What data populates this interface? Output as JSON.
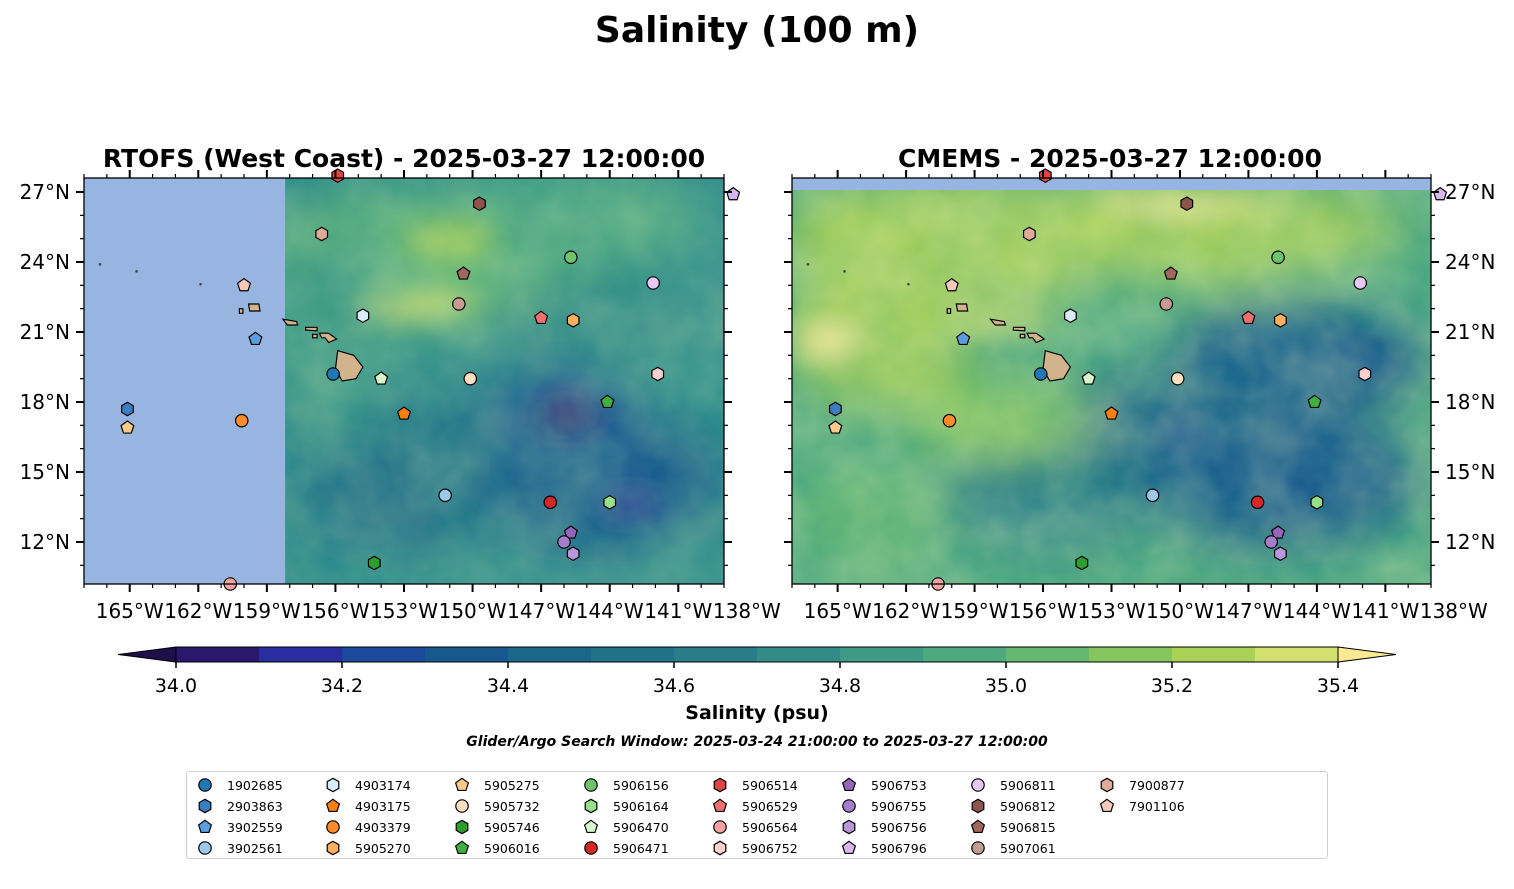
{
  "figure_title": "Salinity (100 m)",
  "search_window": "Glider/Argo Search Window: 2025-03-24 21:00:00 to 2025-03-27 12:00:00",
  "colorbar": {
    "label": "Salinity (psu)",
    "ticks": [
      "34.0",
      "34.2",
      "34.4",
      "34.6",
      "34.8",
      "35.0",
      "35.2",
      "35.4"
    ],
    "vmin": 34.0,
    "vmax": 35.4,
    "step": 0.1,
    "colors": [
      "#2a186c",
      "#2a2d9f",
      "#1b4a9a",
      "#17598f",
      "#1a6789",
      "#1f7287",
      "#287d88",
      "#338b88",
      "#3e9a84",
      "#4ea97f",
      "#65b871",
      "#86c65e",
      "#a9d156",
      "#d3e06f"
    ],
    "under_color": "#1d0f4a",
    "over_color": "#fbea92"
  },
  "panels": [
    {
      "title": "RTOFS (West Coast) - 2025-03-27 12:00:00",
      "lat_ticks": [
        "27°N",
        "24°N",
        "21°N",
        "18°N",
        "15°N",
        "12°N"
      ],
      "lon_ticks": [
        "165°W",
        "162°W",
        "159°W",
        "156°W",
        "153°W",
        "150°W",
        "147°W",
        "144°W",
        "141°W",
        "138°W"
      ]
    },
    {
      "title": "CMEMS - 2025-03-27 12:00:00",
      "lat_ticks": [
        "27°N",
        "24°N",
        "21°N",
        "18°N",
        "15°N",
        "12°N"
      ],
      "lon_ticks": [
        "165°W",
        "162°W",
        "159°W",
        "156°W",
        "153°W",
        "150°W",
        "147°W",
        "144°W",
        "141°W",
        "138°W"
      ]
    }
  ],
  "chart_data": {
    "type": "scatter",
    "map_extent": {
      "lon": [
        -167,
        -139
      ],
      "lat": [
        10.2,
        27.6
      ]
    },
    "rtofs_valid_lon_min": -158.2,
    "cmems_valid_lat_max": 27.1,
    "lat_tick_values": [
      27,
      24,
      21,
      18,
      15,
      12
    ],
    "lon_tick_values": [
      -165,
      -162,
      -159,
      -156,
      -153,
      -150,
      -147,
      -144,
      -141,
      -138
    ],
    "land_color": "#d2b48c",
    "nodata_color": "#97b5e0",
    "series": [
      {
        "name": "1902685",
        "marker": "circle",
        "color": "#1f77b4",
        "lon": -156.1,
        "lat": 19.2
      },
      {
        "name": "2903863",
        "marker": "hexagon",
        "color": "#3a7fc1",
        "lon": -165.1,
        "lat": 17.7
      },
      {
        "name": "3902559",
        "marker": "pentagon",
        "color": "#5a9ee0",
        "lon": -159.5,
        "lat": 20.7
      },
      {
        "name": "3902561",
        "marker": "circle",
        "color": "#9ec8ea",
        "lon": -151.2,
        "lat": 14.0
      },
      {
        "name": "4903174",
        "marker": "hexagon",
        "color": "#d8ecfa",
        "lon": -154.8,
        "lat": 21.7
      },
      {
        "name": "4903175",
        "marker": "pentagon",
        "color": "#ff7f0e",
        "lon": -153.0,
        "lat": 17.5
      },
      {
        "name": "4903379",
        "marker": "circle",
        "color": "#ff8c2a",
        "lon": -160.1,
        "lat": 17.2
      },
      {
        "name": "5905270",
        "marker": "hexagon",
        "color": "#ffb060",
        "lon": -145.6,
        "lat": 21.5
      },
      {
        "name": "5905275",
        "marker": "pentagon",
        "color": "#ffc98a",
        "lon": -165.1,
        "lat": 16.9
      },
      {
        "name": "5905732",
        "marker": "circle",
        "color": "#ffe0c0",
        "lon": -150.1,
        "lat": 19.0
      },
      {
        "name": "5905746",
        "marker": "hexagon",
        "color": "#2ca02c",
        "lon": -154.3,
        "lat": 11.1
      },
      {
        "name": "5906016",
        "marker": "pentagon",
        "color": "#3fb03f",
        "lon": -144.1,
        "lat": 18.0
      },
      {
        "name": "5906156",
        "marker": "circle",
        "color": "#6cc46c",
        "lon": -145.7,
        "lat": 24.2
      },
      {
        "name": "5906164",
        "marker": "hexagon",
        "color": "#98df8a",
        "lon": -144.0,
        "lat": 13.7
      },
      {
        "name": "5906470",
        "marker": "pentagon",
        "color": "#d6f5cc",
        "lon": -154.0,
        "lat": 19.0
      },
      {
        "name": "5906471",
        "marker": "circle",
        "color": "#d62728",
        "lon": -146.6,
        "lat": 13.7
      },
      {
        "name": "5906514",
        "marker": "hexagon",
        "color": "#e04545",
        "lon": -155.9,
        "lat": 27.7
      },
      {
        "name": "5906529",
        "marker": "pentagon",
        "color": "#f07070",
        "lon": -147.0,
        "lat": 21.6
      },
      {
        "name": "5906564",
        "marker": "circle",
        "color": "#f4a3a3",
        "lon": -160.6,
        "lat": 10.2
      },
      {
        "name": "5906752",
        "marker": "hexagon",
        "color": "#fbd0d0",
        "lon": -141.9,
        "lat": 19.2
      },
      {
        "name": "5906753",
        "marker": "pentagon",
        "color": "#9467bd",
        "lon": -145.7,
        "lat": 12.4
      },
      {
        "name": "5906755",
        "marker": "circle",
        "color": "#a57ecb",
        "lon": -146.0,
        "lat": 12.0
      },
      {
        "name": "5906756",
        "marker": "hexagon",
        "color": "#b898d8",
        "lon": -145.6,
        "lat": 11.5
      },
      {
        "name": "5906796",
        "marker": "pentagon",
        "color": "#d7b8ee",
        "lon": -138.6,
        "lat": 26.9
      },
      {
        "name": "5906811",
        "marker": "circle",
        "color": "#e5c8f5",
        "lon": -142.1,
        "lat": 23.1
      },
      {
        "name": "5906812",
        "marker": "hexagon",
        "color": "#8c564b",
        "lon": -149.7,
        "lat": 26.5
      },
      {
        "name": "5906815",
        "marker": "pentagon",
        "color": "#a0685a",
        "lon": -150.4,
        "lat": 23.5
      },
      {
        "name": "5907061",
        "marker": "circle",
        "color": "#c49c94",
        "lon": -150.6,
        "lat": 22.2
      },
      {
        "name": "7900877",
        "marker": "hexagon",
        "color": "#e0aa98",
        "lon": -156.6,
        "lat": 25.2
      },
      {
        "name": "7901106",
        "marker": "pentagon",
        "color": "#f8c8b8",
        "lon": -160.0,
        "lat": 23.0
      }
    ]
  }
}
